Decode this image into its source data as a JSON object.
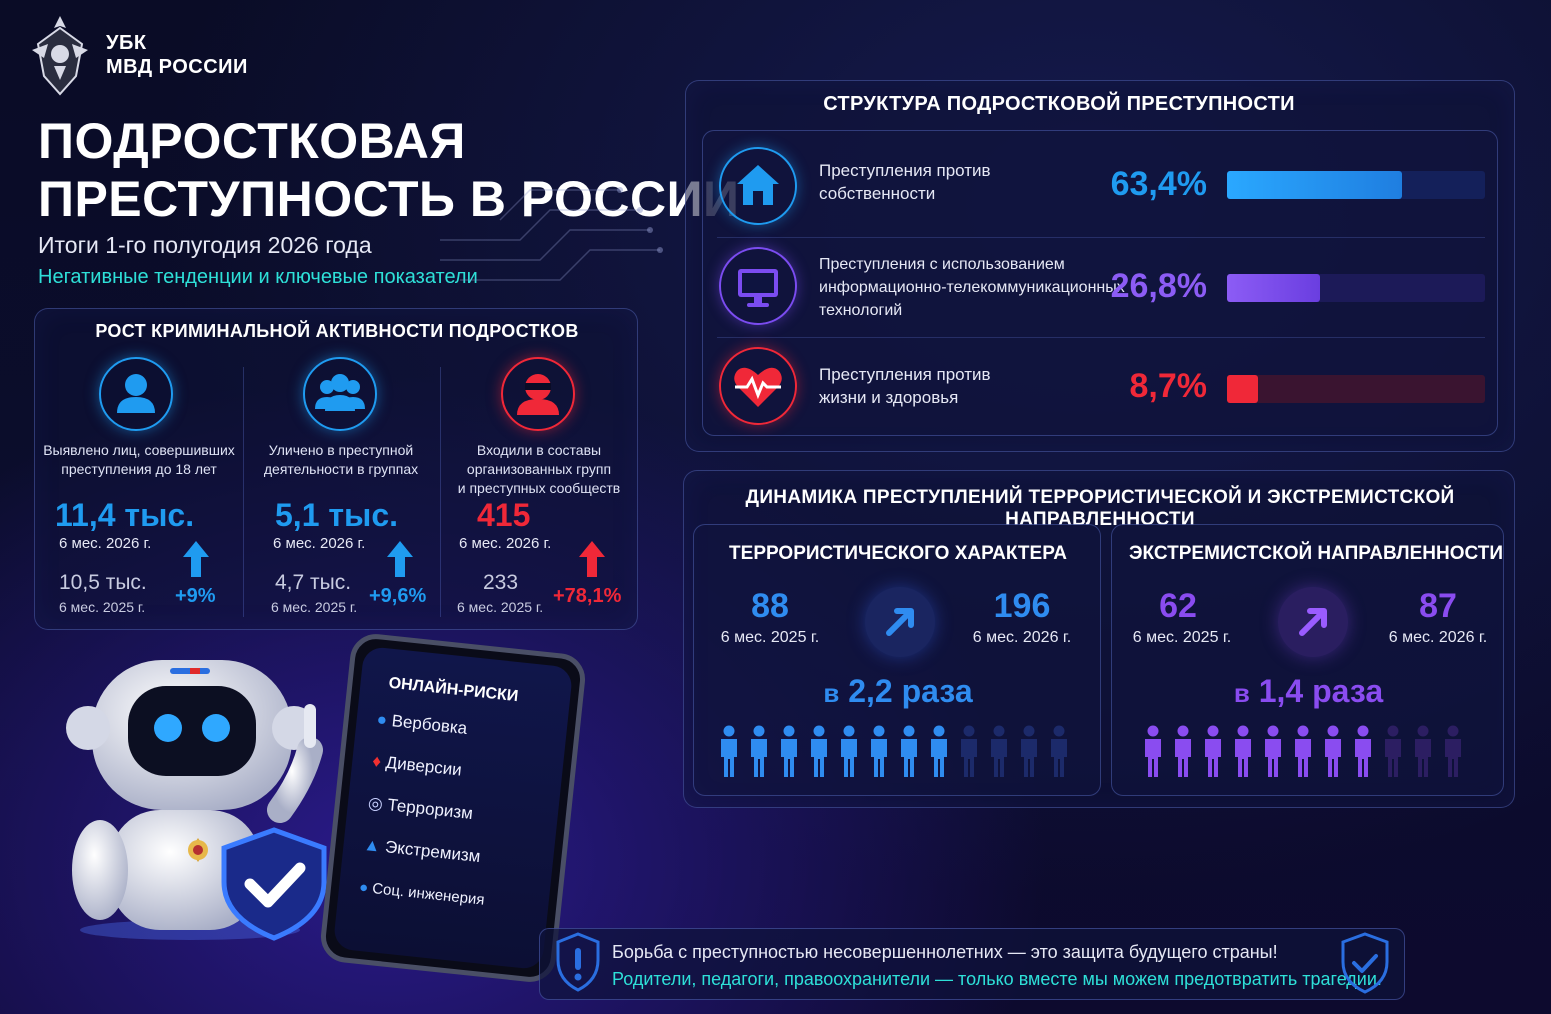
{
  "header": {
    "org_line1": "УБК",
    "org_line2": "МВД РОССИИ",
    "title_line1": "ПОДРОСТКОВАЯ",
    "title_line2": "ПРЕСТУПНОСТЬ В РОССИИ",
    "subtitle": "Итоги 1-го полугодия 2026 года",
    "tagline": "Негативные тенденции и ключевые показатели"
  },
  "growth": {
    "title": "РОСТ КРИМИНАЛЬНОЙ АКТИВНОСТИ ПОДРОСТКОВ",
    "items": [
      {
        "icon": "person-icon",
        "desc_line1": "Выявлено лиц, совершивших",
        "desc_line2": "преступления до 18 лет",
        "desc_line3": "",
        "value": "11,4",
        "unit": "тыс.",
        "period": "6 мес. 2026 г.",
        "prev_value": "10,5 тыс.",
        "prev_period": "6 мес. 2025 г.",
        "change": "+9%",
        "color": "#1f9bf0"
      },
      {
        "icon": "group-icon",
        "desc_line1": "Уличено в преступной",
        "desc_line2": "деятельности в группах",
        "desc_line3": "",
        "value": "5,1",
        "unit": "тыс.",
        "period": "6 мес. 2026 г.",
        "prev_value": "4,7 тыс.",
        "prev_period": "6 мес. 2025 г.",
        "change": "+9,6%",
        "color": "#1f9bf0"
      },
      {
        "icon": "masked-criminal-icon",
        "desc_line1": "Входили в составы",
        "desc_line2": "организованных групп",
        "desc_line3": "и преступных сообществ",
        "value": "415",
        "unit": "",
        "period": "6 мес. 2026 г.",
        "prev_value": "233",
        "prev_period": "6 мес. 2025 г.",
        "change": "+78,1%",
        "color": "#f02838"
      }
    ]
  },
  "structure": {
    "title": "СТРУКТУРА ПОДРОСТКОВОЙ ПРЕСТУПНОСТИ",
    "rows": [
      {
        "icon": "house-icon",
        "label_line1": "Преступления против",
        "label_line2": "собственности",
        "label_line3": "",
        "value": "63,4%",
        "share": 0.68,
        "color": "#1f9bf0"
      },
      {
        "icon": "monitor-icon",
        "label_line1": "Преступления с использованием",
        "label_line2": "информационно-телекоммуникационных",
        "label_line3": "технологий",
        "value": "26,8%",
        "share": 0.36,
        "color": "#7b4cf0"
      },
      {
        "icon": "heart-pulse-icon",
        "label_line1": "Преступления против",
        "label_line2": "жизни и здоровья",
        "label_line3": "",
        "value": "8,7%",
        "share": 0.12,
        "color": "#f02838"
      }
    ]
  },
  "dynamics": {
    "title": "ДИНАМИКА ПРЕСТУПЛЕНИЙ ТЕРРОРИСТИЧЕСКОЙ И ЭКСТРЕМИСТСКОЙ НАПРАВЛЕННОСТИ",
    "blocks": [
      {
        "title": "ТЕРРОРИСТИЧЕСКОГО ХАРАКТЕРА",
        "prev": "88",
        "prev_label": "6 мес. 2025 г.",
        "curr": "196",
        "curr_label": "6 мес. 2026 г.",
        "mult_prefix": "в",
        "mult_value": "2,2 раза",
        "color": "#2f8cf0",
        "filled": 8,
        "total": 12
      },
      {
        "title": "ЭКСТРЕМИСТСКОЙ НАПРАВЛЕННОСТИ",
        "prev": "62",
        "prev_label": "6 мес. 2025 г.",
        "curr": "87",
        "curr_label": "6 мес. 2026 г.",
        "mult_prefix": "в",
        "mult_value": "1,4 раза",
        "color": "#8a4cf0",
        "filled": 8,
        "total": 11
      }
    ]
  },
  "online_risks": {
    "title": "ОНЛАЙН-РИСКИ",
    "items": [
      {
        "label": "Вербовка",
        "icon": "hooded-person-icon"
      },
      {
        "label": "Диверсии",
        "icon": "fire-icon"
      },
      {
        "label": "Терроризм",
        "icon": "globe-icon"
      },
      {
        "label": "Экстремизм",
        "icon": "warning-icon"
      },
      {
        "label": "Соц. инженерия",
        "icon": "people-icon"
      }
    ]
  },
  "banner": {
    "line1": "Борьба с преступностью несовершеннолетних — это защита будущего страны!",
    "line2": "Родители, педагоги, правоохранители — только вместе мы можем предотвратить трагедии."
  }
}
